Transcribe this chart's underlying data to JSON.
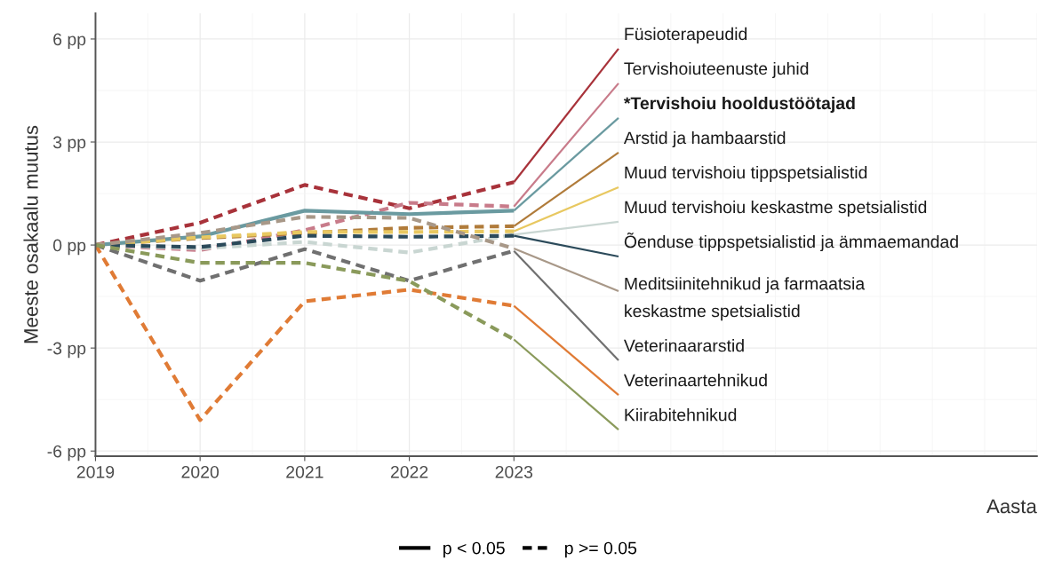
{
  "chart_data": {
    "type": "line",
    "xlabel": "Aasta",
    "ylabel": "Meeste osakaalu muutus",
    "x": [
      2019,
      2020,
      2021,
      2022,
      2023
    ],
    "xlim": [
      2019,
      2028
    ],
    "xticks": [
      2019,
      2020,
      2021,
      2022,
      2023
    ],
    "ylim": [
      -6.15,
      6.75
    ],
    "yticks": [
      {
        "value": -6,
        "label": "-6 pp"
      },
      {
        "value": -3,
        "label": "-3 pp"
      },
      {
        "value": 0,
        "label": "0 pp"
      },
      {
        "value": 3,
        "label": "3 pp"
      },
      {
        "value": 6,
        "label": "6 pp"
      }
    ],
    "grid": true,
    "legend": "bottom",
    "marker": "none",
    "series": [
      {
        "name": "Füsioterapeudid",
        "color": "#a8323a",
        "line_style": "dashed",
        "values": [
          0,
          0.65,
          1.75,
          1.07,
          1.83
        ]
      },
      {
        "name": "Tervishoiuteenuste juhid",
        "color": "#c87b8a",
        "line_style": "dashed",
        "values": [
          0,
          -0.15,
          0.43,
          1.23,
          1.12
        ]
      },
      {
        "name": "*Tervishoiu hooldustöötajad",
        "color": "#6a9aa0",
        "line_style": "solid",
        "values": [
          0,
          0.25,
          1.0,
          0.9,
          1.0
        ]
      },
      {
        "name": "Arstid ja hambaarstid",
        "color": "#b07b3a",
        "line_style": "dashed",
        "values": [
          0,
          0.2,
          0.35,
          0.5,
          0.55
        ]
      },
      {
        "name": "Muud tervishoiu tippspetsialistid",
        "color": "#e8c860",
        "line_style": "dashed",
        "values": [
          0,
          0.22,
          0.38,
          0.38,
          0.4
        ]
      },
      {
        "name": "Muud tervishoiu keskastme spetsialistid",
        "color": "#c9d6d2",
        "line_style": "dashed",
        "values": [
          0,
          -0.1,
          0.09,
          -0.22,
          0.3
        ]
      },
      {
        "name": "Õenduse tippspetsialistid ja ämmaemandad",
        "color": "#2b4a5a",
        "line_style": "dashed",
        "values": [
          0,
          -0.06,
          0.27,
          0.24,
          0.27
        ]
      },
      {
        "name": "Meditsiinitehnikud ja farmaatsia\nkeskastme spetsialistid",
        "color": "#a89888",
        "line_style": "dashed",
        "values": [
          0,
          0.35,
          0.82,
          0.79,
          -0.1
        ]
      },
      {
        "name": "Veterinaararstid",
        "color": "#707070",
        "line_style": "dashed",
        "values": [
          0,
          -1.04,
          -0.12,
          -1.04,
          -0.17
        ]
      },
      {
        "name": "Veterinaartehnikud",
        "color": "#e07b35",
        "line_style": "dashed",
        "values": [
          0,
          -5.1,
          -1.64,
          -1.3,
          -1.77
        ]
      },
      {
        "name": "Kiirabitehnikud",
        "color": "#8a9a5b",
        "line_style": "dashed",
        "values": [
          0,
          -0.52,
          -0.52,
          -1.05,
          -2.75
        ]
      },
      {
        "name": "p < 0.05",
        "color": "#000000",
        "line_style": "solid",
        "values": [
          null,
          null,
          null,
          null,
          null
        ]
      },
      {
        "name": "p >= 0.05",
        "color": "#000000",
        "line_style": "dashed",
        "values": [
          null,
          null,
          null,
          null,
          null
        ]
      }
    ]
  }
}
